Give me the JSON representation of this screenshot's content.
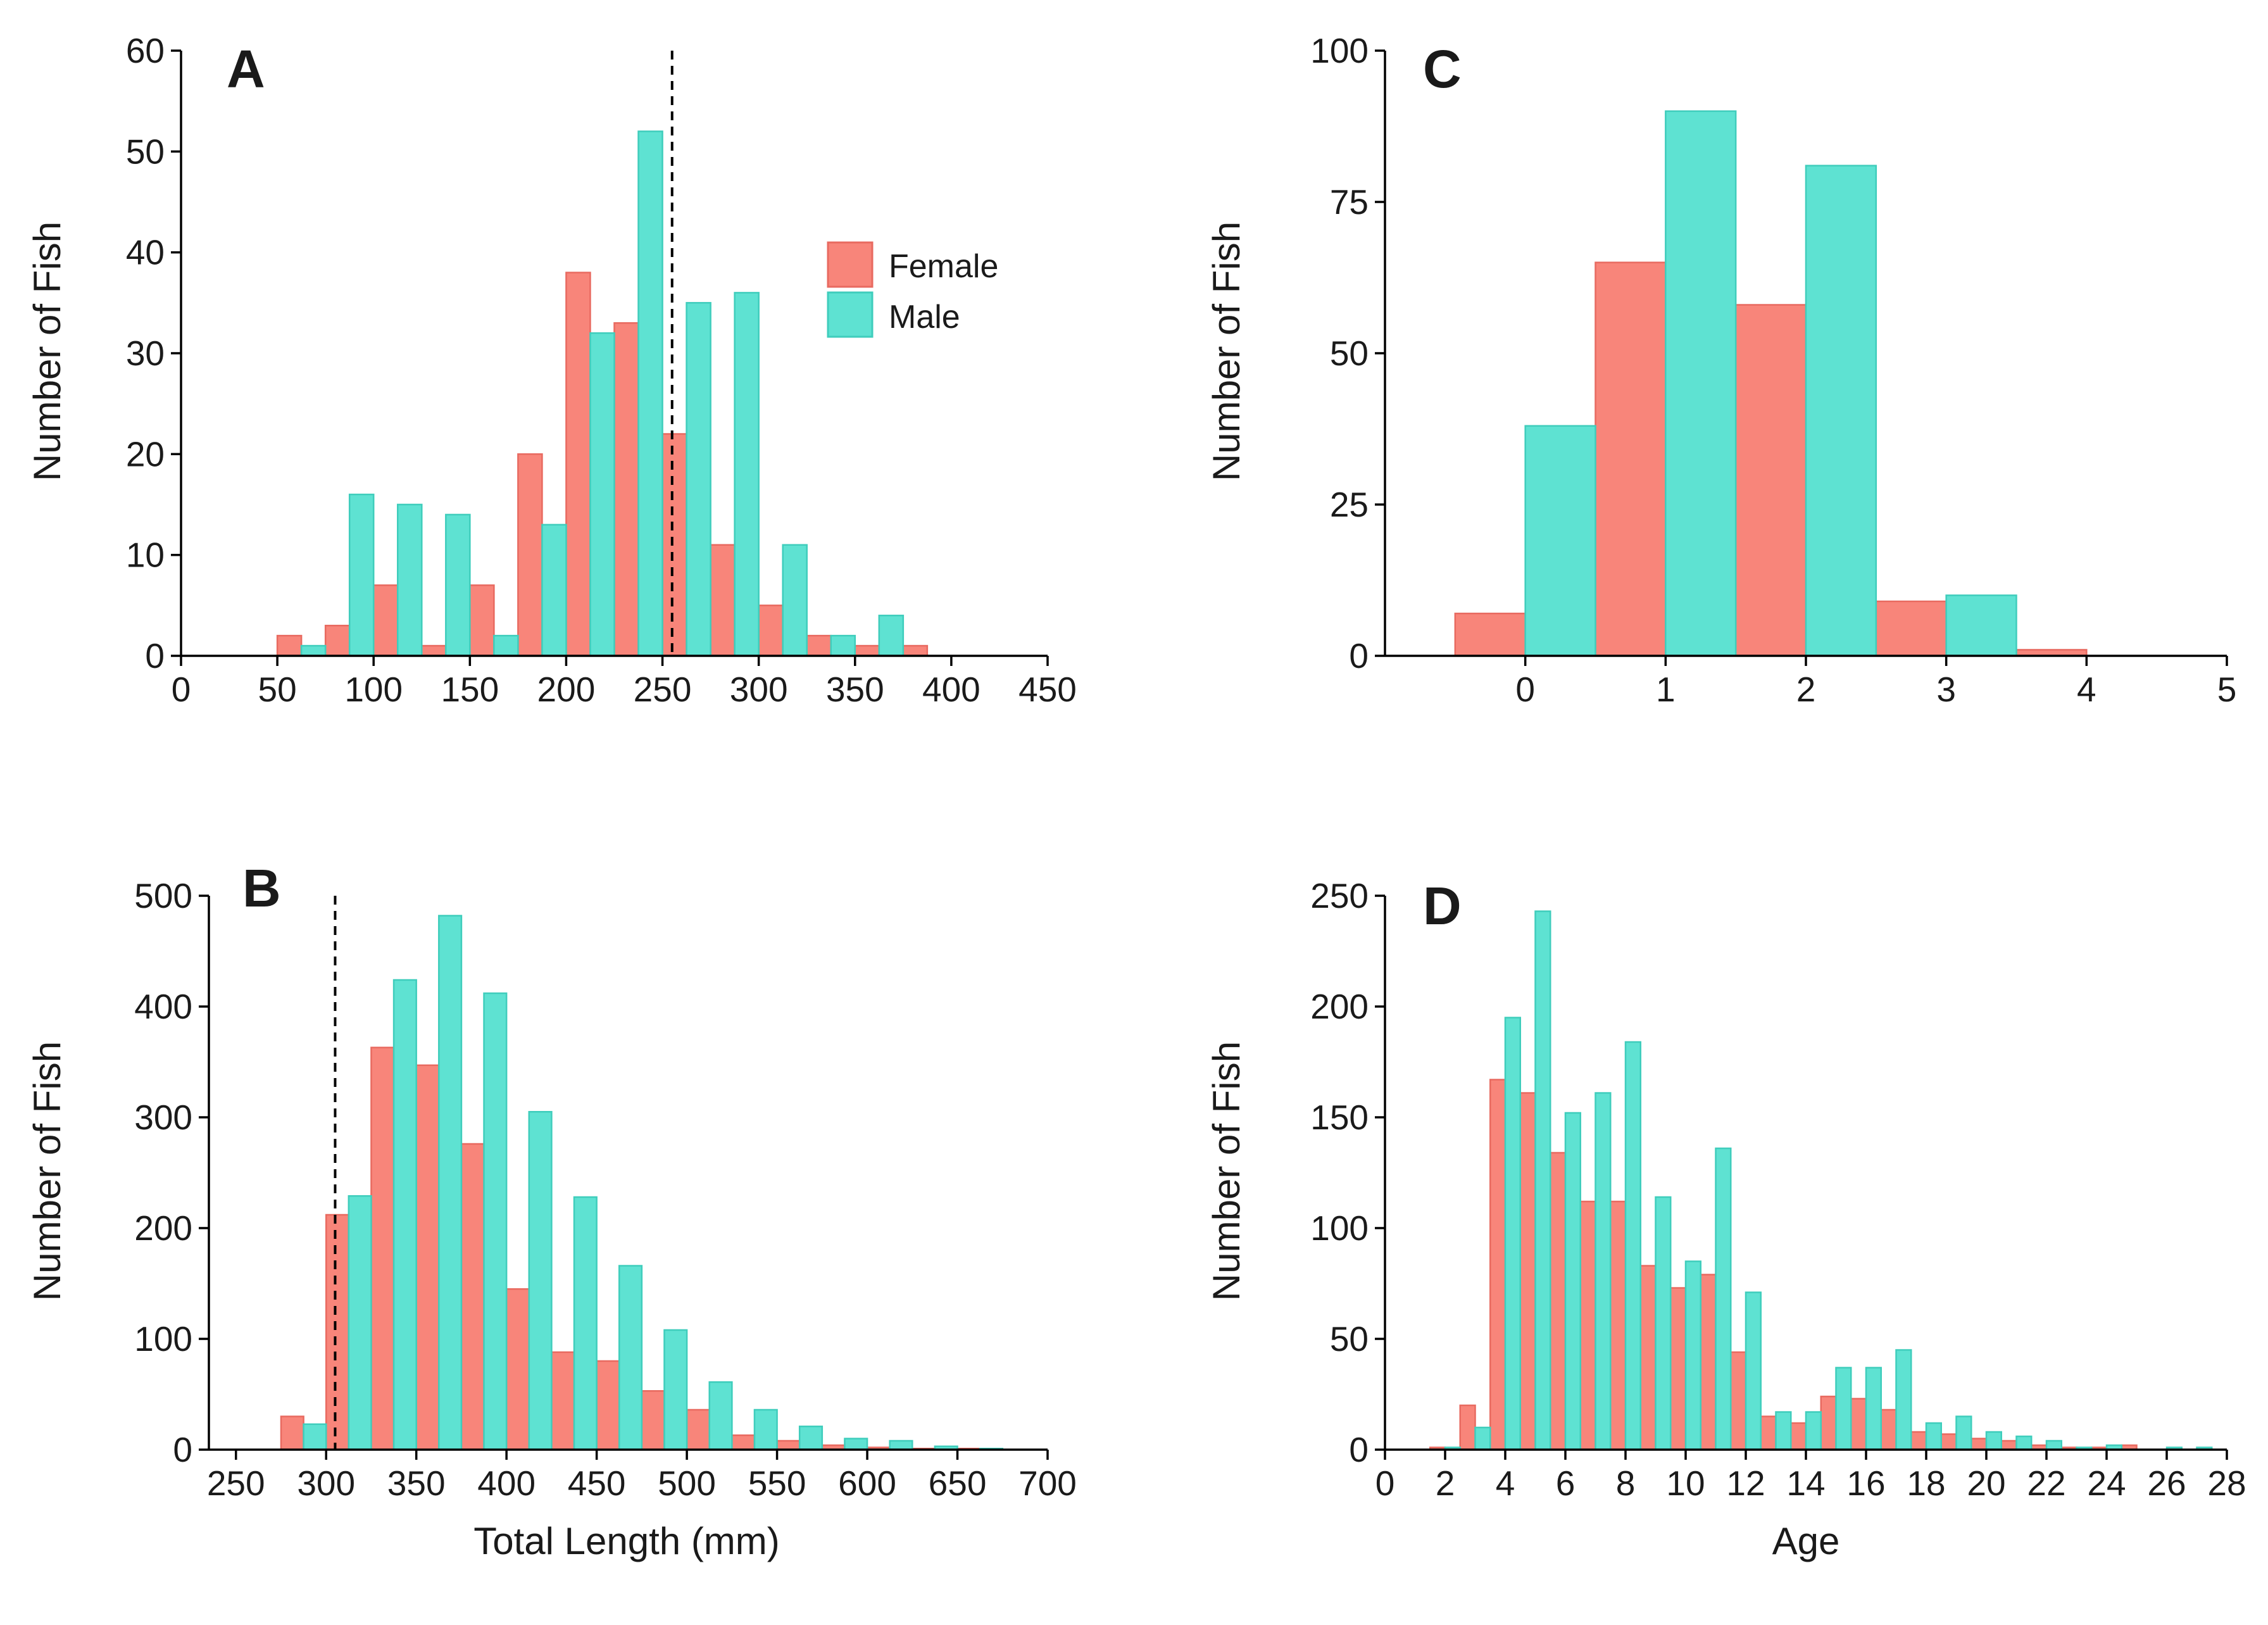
{
  "colors": {
    "female": "#F8857A",
    "female_edge": "#E86A60",
    "male": "#5EE2D2",
    "male_edge": "#3FCDBC"
  },
  "legend": {
    "female_label": "Female",
    "male_label": "Male"
  },
  "chart_data": [
    {
      "panel": "A",
      "type": "bar",
      "xlabel": "",
      "ylabel": "Number of Fish",
      "xlim": [
        0,
        450
      ],
      "ylim": [
        0,
        60
      ],
      "xticks": [
        0,
        50,
        100,
        150,
        200,
        250,
        300,
        350,
        400,
        450
      ],
      "yticks": [
        0,
        10,
        20,
        30,
        40,
        50,
        60
      ],
      "bin_width": 25,
      "x": [
        62.5,
        87.5,
        112.5,
        137.5,
        162.5,
        187.5,
        212.5,
        237.5,
        262.5,
        287.5,
        312.5,
        337.5,
        362.5,
        387.5
      ],
      "reference_line_x": 255,
      "legend": true,
      "series": [
        {
          "name": "Female",
          "values": [
            2,
            3,
            7,
            1,
            7,
            20,
            38,
            33,
            22,
            11,
            5,
            2,
            1,
            1
          ]
        },
        {
          "name": "Male",
          "values": [
            1,
            16,
            15,
            14,
            2,
            13,
            32,
            52,
            35,
            36,
            11,
            2,
            4,
            0
          ]
        }
      ]
    },
    {
      "panel": "B",
      "type": "bar",
      "xlabel": "Total Length (mm)",
      "ylabel": "Number of Fish",
      "xlim": [
        235,
        700
      ],
      "ylim": [
        0,
        500
      ],
      "xticks": [
        250,
        300,
        350,
        400,
        450,
        500,
        550,
        600,
        650,
        700
      ],
      "yticks": [
        0,
        100,
        200,
        300,
        400,
        500
      ],
      "bin_width": 25,
      "x": [
        287.5,
        312.5,
        337.5,
        362.5,
        387.5,
        412.5,
        437.5,
        462.5,
        487.5,
        512.5,
        537.5,
        562.5,
        587.5,
        612.5,
        637.5,
        662.5,
        687.5
      ],
      "reference_line_x": 305,
      "legend": false,
      "series": [
        {
          "name": "Female",
          "values": [
            30,
            212,
            363,
            347,
            276,
            145,
            88,
            80,
            53,
            36,
            13,
            8,
            4,
            2,
            1,
            1,
            0
          ]
        },
        {
          "name": "Male",
          "values": [
            23,
            229,
            424,
            482,
            412,
            305,
            228,
            166,
            108,
            61,
            36,
            21,
            10,
            8,
            3,
            1,
            0
          ]
        }
      ]
    },
    {
      "panel": "C",
      "type": "bar",
      "xlabel": "",
      "ylabel": "Number of Fish",
      "xlim": [
        -1,
        5
      ],
      "ylim": [
        0,
        100
      ],
      "xticks": [
        0,
        1,
        2,
        3,
        4,
        5
      ],
      "yticks": [
        0,
        25,
        50,
        75,
        100
      ],
      "bin_width": 1,
      "x": [
        0,
        1,
        2,
        3,
        4
      ],
      "legend": false,
      "series": [
        {
          "name": "Female",
          "values": [
            7,
            65,
            58,
            9,
            1
          ]
        },
        {
          "name": "Male",
          "values": [
            38,
            90,
            81,
            10,
            0
          ]
        }
      ]
    },
    {
      "panel": "D",
      "type": "bar",
      "xlabel": "Age",
      "ylabel": "Number of Fish",
      "xlim": [
        0,
        28
      ],
      "ylim": [
        0,
        250
      ],
      "xticks": [
        0,
        2,
        4,
        6,
        8,
        10,
        12,
        14,
        16,
        18,
        20,
        22,
        24,
        26,
        28
      ],
      "yticks": [
        0,
        50,
        100,
        150,
        200,
        250
      ],
      "bin_width": 1,
      "x": [
        2,
        3,
        4,
        5,
        6,
        7,
        8,
        9,
        10,
        11,
        12,
        13,
        14,
        15,
        16,
        17,
        18,
        19,
        20,
        21,
        22,
        23,
        24,
        25,
        26,
        27
      ],
      "legend": false,
      "series": [
        {
          "name": "Female",
          "values": [
            1,
            20,
            167,
            161,
            134,
            112,
            112,
            83,
            73,
            79,
            44,
            15,
            12,
            24,
            23,
            18,
            8,
            7,
            5,
            4,
            2,
            1,
            1,
            2,
            0,
            0
          ]
        },
        {
          "name": "Male",
          "values": [
            1,
            10,
            195,
            243,
            152,
            161,
            184,
            114,
            85,
            136,
            71,
            17,
            17,
            37,
            37,
            45,
            12,
            15,
            8,
            6,
            4,
            1,
            2,
            0,
            1,
            1
          ]
        }
      ]
    }
  ]
}
